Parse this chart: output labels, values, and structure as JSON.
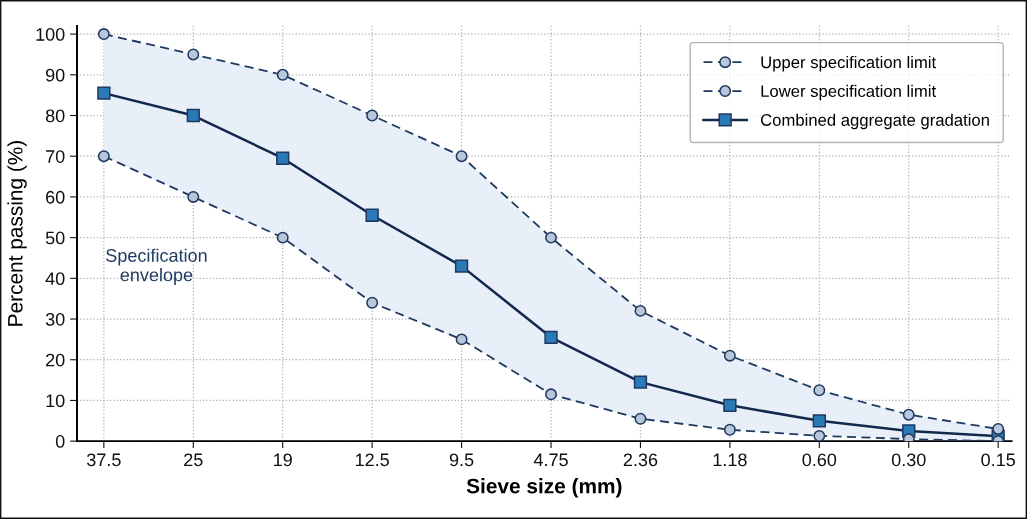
{
  "chart_data": {
    "type": "line",
    "xlabel": "Sieve size (mm)",
    "ylabel": "Percent passing (%)",
    "categories": [
      "37.5",
      "25",
      "19",
      "12.5",
      "9.5",
      "4.75",
      "2.36",
      "1.18",
      "0.60",
      "0.30",
      "0.15"
    ],
    "series": [
      {
        "name": "Upper specification limit",
        "color": "#1f3a5f",
        "line_style": "dashed",
        "marker": "circle",
        "values": [
          100,
          95,
          90,
          80,
          70,
          50,
          32,
          21,
          12.5,
          6.5,
          3
        ]
      },
      {
        "name": "Lower specification limit",
        "color": "#1f3a5f",
        "line_style": "dashed",
        "marker": "circle",
        "values": [
          70,
          60,
          50,
          34,
          25,
          11.5,
          5.5,
          2.8,
          1.3,
          0.5,
          0
        ]
      },
      {
        "name": "Combined aggregate gradation",
        "color": "#13284d",
        "line_style": "solid",
        "marker": "square",
        "values": [
          85.5,
          80,
          69.5,
          55.5,
          43,
          25.5,
          14.5,
          8.8,
          5,
          2.5,
          1.2
        ],
        "lower": [
          70,
          60,
          50,
          34,
          25,
          11.5,
          5.5,
          2.8,
          1.3,
          0.5,
          0
        ],
        "upper": [
          100,
          95,
          90,
          80,
          70,
          50,
          32,
          21,
          12.5,
          6.5,
          3
        ]
      }
    ],
    "ylim": [
      0,
      102
    ],
    "yticks": [
      0,
      10,
      20,
      30,
      40,
      50,
      60,
      70,
      80,
      90,
      100
    ],
    "annotations": [
      "Specification\nenvelope"
    ],
    "grid": true,
    "legend": "top right"
  }
}
